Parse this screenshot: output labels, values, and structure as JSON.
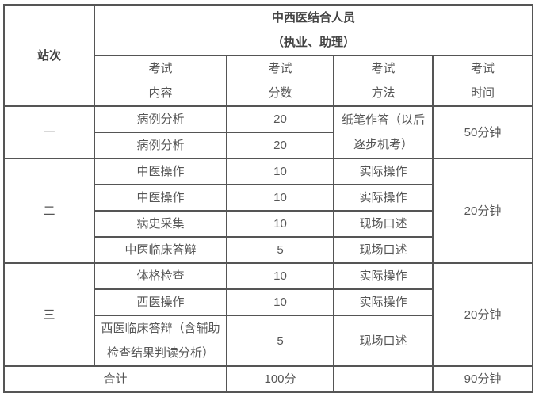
{
  "header": {
    "station": "站次",
    "group_title": "中西医结合人员",
    "group_sub": "（执业、助理）",
    "cols": [
      {
        "l1": "考试",
        "l2": "内容"
      },
      {
        "l1": "考试",
        "l2": "分数"
      },
      {
        "l1": "考试",
        "l2": "方法"
      },
      {
        "l1": "考试",
        "l2": "时间"
      }
    ]
  },
  "stations": [
    {
      "name": "一",
      "method": "纸笔作答（以后逐步机考）",
      "time": "50分钟",
      "rows": [
        {
          "content": "病例分析",
          "score": "20"
        },
        {
          "content": "病例分析",
          "score": "20"
        }
      ]
    },
    {
      "name": "二",
      "time": "20分钟",
      "rows": [
        {
          "content": "中医操作",
          "score": "10",
          "method": "实际操作"
        },
        {
          "content": "中医操作",
          "score": "10",
          "method": "实际操作"
        },
        {
          "content": "病史采集",
          "score": "10",
          "method": "现场口述"
        },
        {
          "content": "中医临床答辩",
          "score": "5",
          "method": "现场口述"
        }
      ]
    },
    {
      "name": "三",
      "time": "20分钟",
      "rows": [
        {
          "content": "体格检查",
          "score": "10",
          "method": "实际操作"
        },
        {
          "content": "西医操作",
          "score": "10",
          "method": "实际操作"
        },
        {
          "content": "西医临床答辩（含辅助检查结果判读分析）",
          "score": "5",
          "method": "现场口述"
        }
      ]
    }
  ],
  "total": {
    "label": "合计",
    "score": "100分",
    "method": "",
    "time": "90分钟"
  }
}
